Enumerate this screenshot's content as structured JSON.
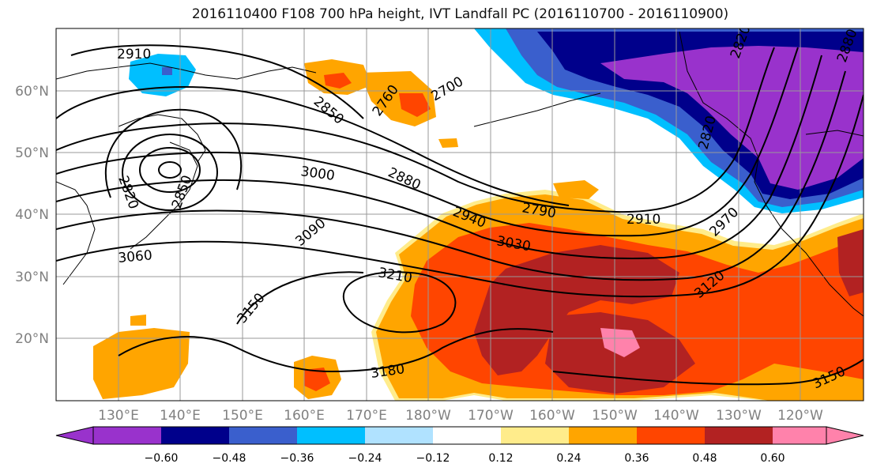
{
  "title": "2016110400 F108 700 hPa height, IVT Landfall PC (2016110700 - 2016110900)",
  "lat_labels": [
    "60°N",
    "50°N",
    "40°N",
    "30°N",
    "20°N"
  ],
  "lon_labels": [
    "130°E",
    "140°E",
    "150°E",
    "160°E",
    "170°E",
    "180°W",
    "170°W",
    "160°W",
    "150°W",
    "140°W",
    "130°W",
    "120°W"
  ],
  "contour_labels": [
    {
      "text": "2910"
    },
    {
      "text": "2850"
    },
    {
      "text": "2820"
    },
    {
      "text": "2760"
    },
    {
      "text": "2700"
    },
    {
      "text": "2850"
    },
    {
      "text": "2820"
    },
    {
      "text": "3000"
    },
    {
      "text": "2880"
    },
    {
      "text": "2790"
    },
    {
      "text": "2940"
    },
    {
      "text": "2910"
    },
    {
      "text": "3060"
    },
    {
      "text": "3090"
    },
    {
      "text": "3030"
    },
    {
      "text": "2970"
    },
    {
      "text": "3210"
    },
    {
      "text": "3120"
    },
    {
      "text": "3150"
    },
    {
      "text": "3180"
    },
    {
      "text": "3150"
    },
    {
      "text": "2880"
    },
    {
      "text": "2820"
    }
  ],
  "colorbar": {
    "colors": [
      "#9932cc",
      "#00008b",
      "#3a5fcd",
      "#00bfff",
      "#b0e2ff",
      "#ffffff",
      "#ffec8b",
      "#ffa500",
      "#ff4500",
      "#b22222",
      "#ff82ab"
    ],
    "tick_labels": [
      "−0.60",
      "−0.48",
      "−0.36",
      "−0.24",
      "−0.12",
      "0.12",
      "0.24",
      "0.36",
      "0.48",
      "0.60"
    ]
  }
}
